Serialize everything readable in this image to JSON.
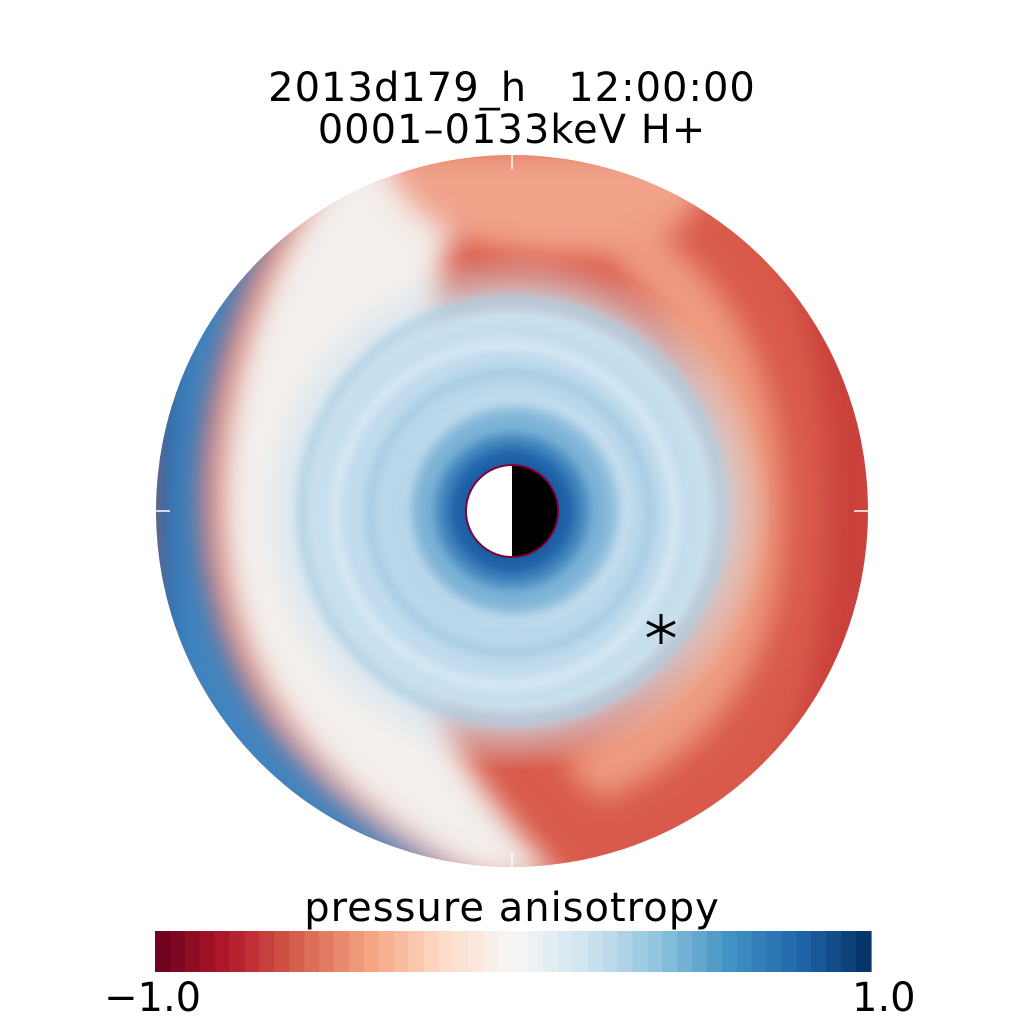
{
  "title": {
    "line1": "2013d179_h   12:00:00",
    "line2": "0001–0133keV H+"
  },
  "colorbar": {
    "label": "pressure anisotropy",
    "min_label": "−1.0",
    "max_label": "1.0",
    "min": -1.0,
    "max": 1.0,
    "stops": [
      "#67001f",
      "#b2182b",
      "#d6604d",
      "#f4a582",
      "#fddbc7",
      "#f7f7f7",
      "#d1e5f0",
      "#92c5de",
      "#4393c3",
      "#2166ac",
      "#053061"
    ],
    "steps": 48
  },
  "marker": {
    "symbol": "asterisk-icon"
  },
  "planet": {
    "day_color": "#ffffff",
    "night_color": "#000000",
    "outline_color": "#800040"
  }
}
